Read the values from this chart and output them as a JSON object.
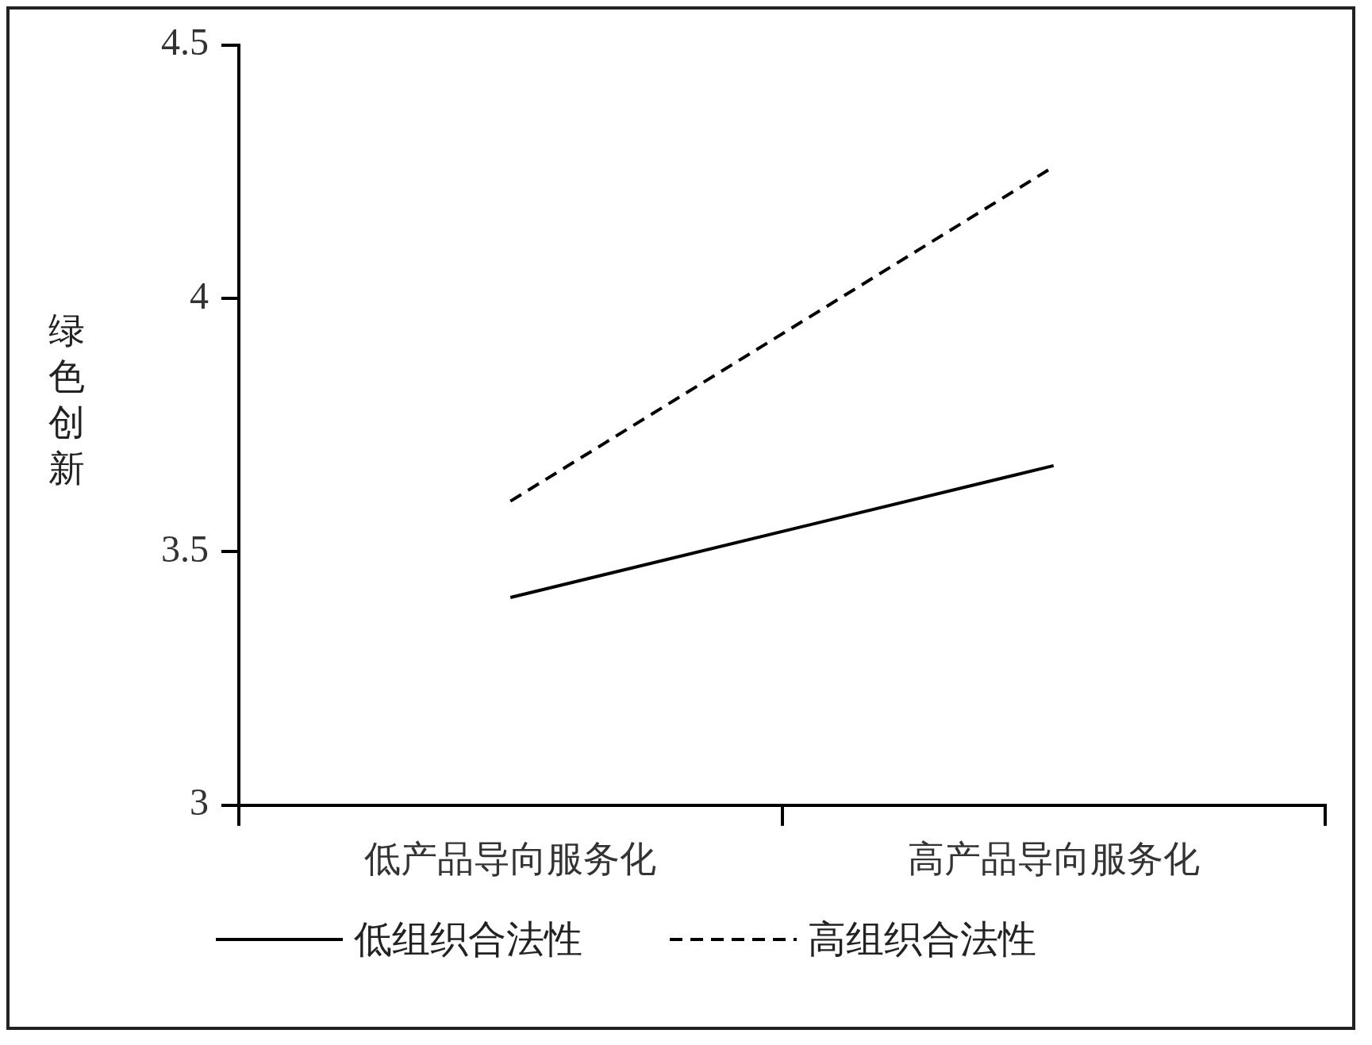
{
  "chart_data": {
    "type": "line",
    "ylabel": "绿色创新",
    "categories": [
      "低产品导向服务化",
      "高产品导向服务化"
    ],
    "series": [
      {
        "name": "低组织合法性",
        "color": "#000000",
        "values": [
          3.41,
          3.67
        ],
        "line_style": "solid"
      },
      {
        "name": "高组织合法性",
        "color": "#000000",
        "values": [
          3.6,
          4.26
        ],
        "line_style": "dashed"
      }
    ],
    "ylim": [
      3,
      4.5
    ],
    "yticks": [
      3,
      3.5,
      4,
      4.5
    ],
    "legend": "bottom",
    "marker": "none"
  }
}
